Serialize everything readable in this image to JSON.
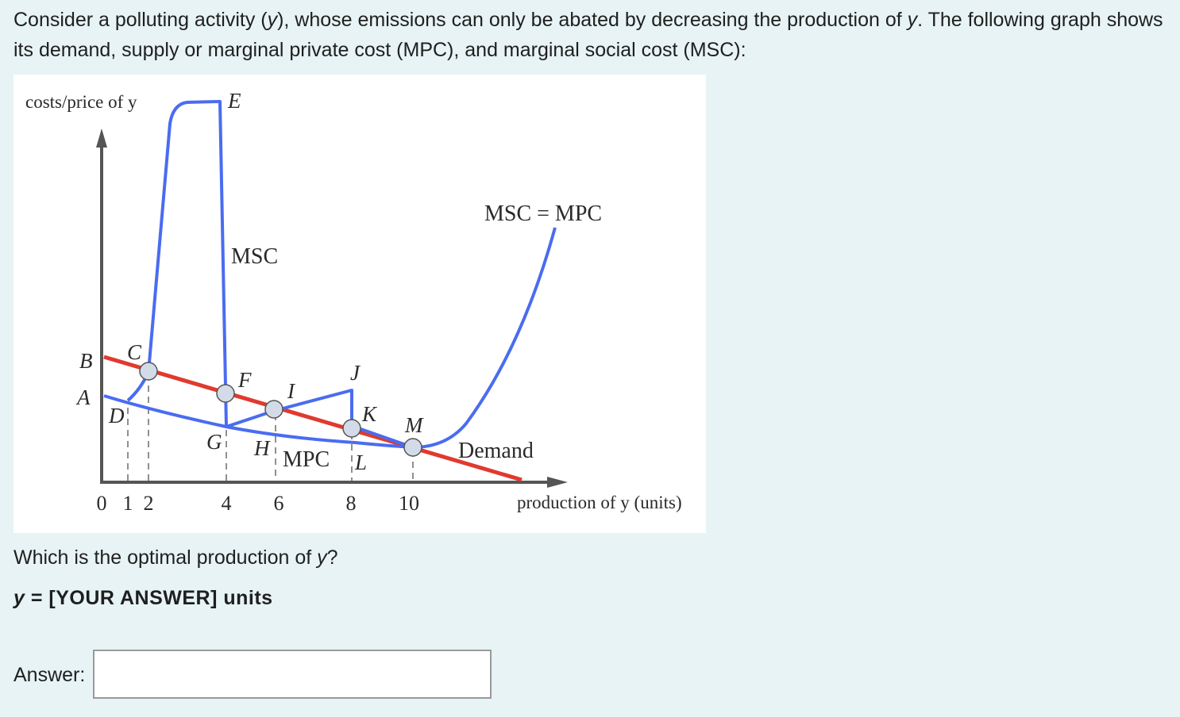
{
  "intro": {
    "part1": "Consider a polluting activity (",
    "var1": "y",
    "part2": "), whose emissions can only be abated by decreasing the production of ",
    "var2": "y",
    "part3": ". The following graph shows its demand, supply or marginal private cost (MPC), and marginal social cost (MSC):"
  },
  "chart_data": {
    "type": "line",
    "ylabel": "costs/price of y",
    "xlabel": "production of y (units)",
    "x_ticks": [
      "0",
      "1",
      "2",
      "4",
      "6",
      "8",
      "10"
    ],
    "y_ticks": [
      "B",
      "A"
    ],
    "series": [
      {
        "name": "Demand",
        "color": "#e03a2e"
      },
      {
        "name": "MPC",
        "color": "#4a6cf0"
      },
      {
        "name": "MSC",
        "color": "#4a6cf0"
      },
      {
        "name": "MSC = MPC",
        "color": "#4a6cf0"
      }
    ],
    "point_labels": [
      "C",
      "D",
      "E",
      "F",
      "G",
      "H",
      "I",
      "J",
      "K",
      "L",
      "M"
    ],
    "curve_labels": {
      "msc": "MSC",
      "mpc": "MPC",
      "demand": "Demand",
      "msc_mpc": "MSC = MPC"
    },
    "marker_color": "#d3dbe8"
  },
  "question": {
    "text1": "Which is the optimal production of ",
    "var": "y",
    "text2": "?"
  },
  "prompt": {
    "var": "y",
    "text": " = [YOUR ANSWER] units"
  },
  "answer": {
    "label": "Answer:",
    "value": "",
    "placeholder": ""
  }
}
